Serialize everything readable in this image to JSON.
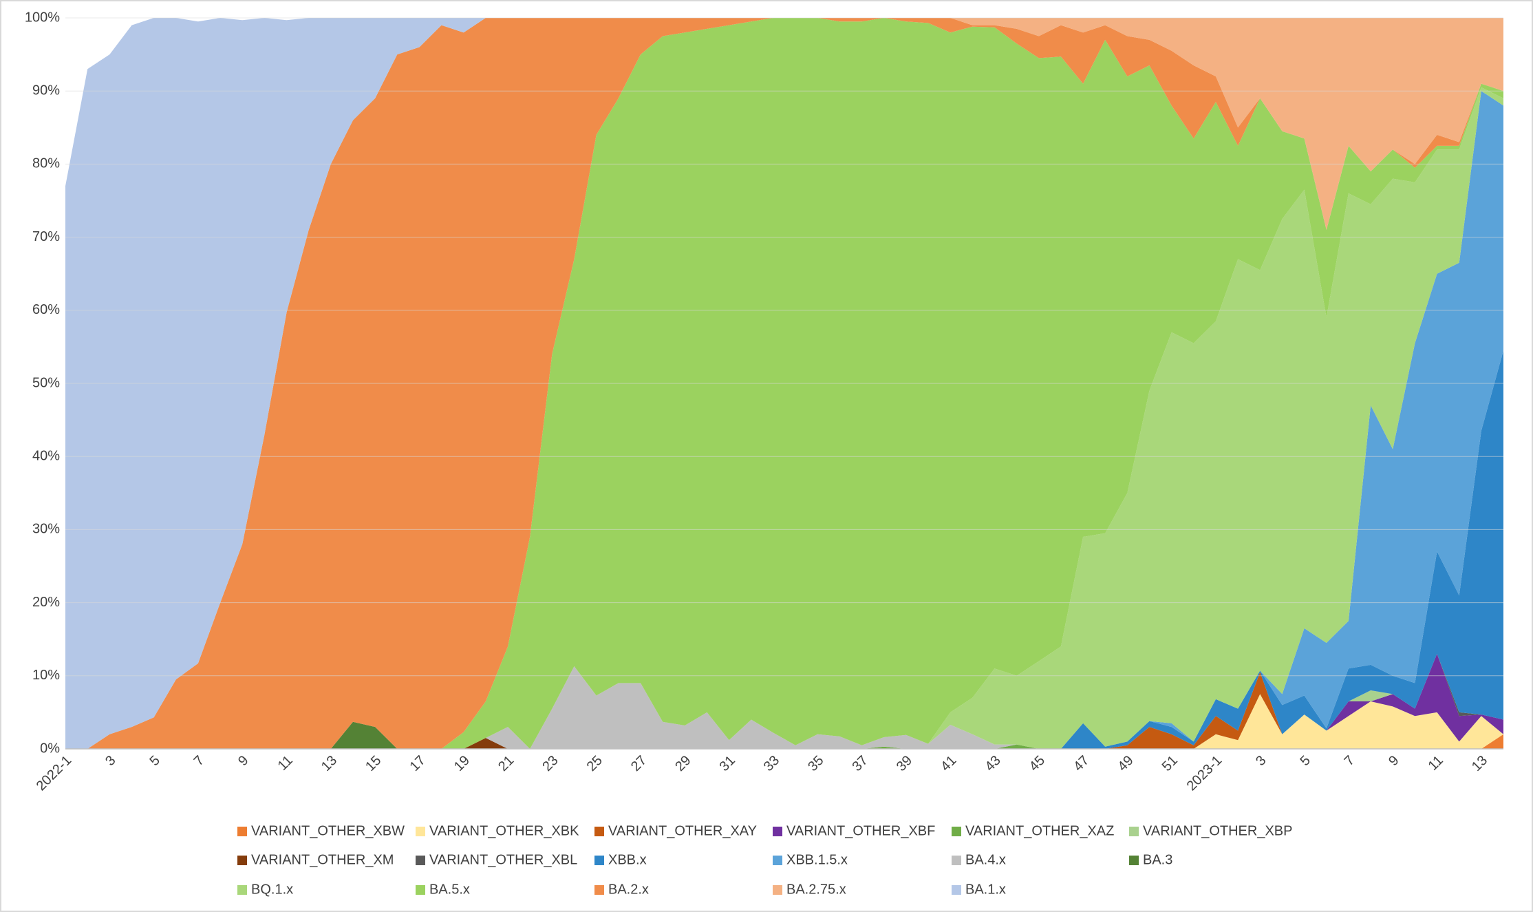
{
  "chart_data": {
    "type": "stacked-area",
    "categories": [
      "2022-1",
      null,
      "3",
      null,
      "5",
      null,
      "7",
      null,
      "9",
      null,
      "11",
      null,
      "13",
      null,
      "15",
      null,
      "17",
      null,
      "19",
      null,
      "21",
      null,
      "23",
      null,
      "25",
      null,
      "27",
      null,
      "29",
      null,
      "31",
      null,
      "33",
      null,
      "35",
      null,
      "37",
      null,
      "39",
      null,
      "41",
      null,
      "43",
      null,
      "45",
      null,
      "47",
      null,
      "49",
      null,
      "51",
      null,
      "2023-1",
      null,
      "3",
      null,
      "5",
      null,
      "7",
      null,
      "9",
      null,
      "11",
      null,
      "13",
      null
    ],
    "ylim": [
      0,
      100
    ],
    "yticks": [
      {
        "value": 0,
        "label": "0%"
      },
      {
        "value": 10,
        "label": "10%"
      },
      {
        "value": 20,
        "label": "20%"
      },
      {
        "value": 30,
        "label": "30%"
      },
      {
        "value": 40,
        "label": "40%"
      },
      {
        "value": 50,
        "label": "50%"
      },
      {
        "value": 60,
        "label": "60%"
      },
      {
        "value": 70,
        "label": "70%"
      },
      {
        "value": 80,
        "label": "80%"
      },
      {
        "value": 90,
        "label": "90%"
      },
      {
        "value": 100,
        "label": "100%"
      }
    ],
    "grid": true,
    "legend": "bottom",
    "series": [
      {
        "name": "VARIANT_OTHER_XBW",
        "color": "#ed7d31",
        "values": [
          0,
          0,
          0,
          0,
          0,
          0,
          0,
          0,
          0,
          0,
          0,
          0,
          0,
          0,
          0,
          0,
          0,
          0,
          0,
          0,
          0,
          0,
          0,
          0,
          0,
          0,
          0,
          0,
          0,
          0,
          0,
          0,
          0,
          0,
          0,
          0,
          0,
          0,
          0,
          0,
          0,
          0,
          0,
          0,
          0,
          0,
          0,
          0,
          0,
          0,
          0,
          0,
          0,
          0,
          0,
          0,
          0,
          0,
          0,
          0,
          0,
          0,
          0,
          0,
          0,
          2
        ]
      },
      {
        "name": "VARIANT_OTHER_XBK",
        "color": "#ffe699",
        "values": [
          0,
          0,
          0,
          0,
          0,
          0,
          0,
          0,
          0,
          0,
          0,
          0,
          0,
          0,
          0,
          0,
          0,
          0,
          0,
          0,
          0,
          0,
          0,
          0,
          0,
          0,
          0,
          0,
          0,
          0,
          0,
          0,
          0,
          0,
          0,
          0,
          0,
          0,
          0,
          0,
          0,
          0,
          0,
          0,
          0,
          0,
          0,
          0,
          0,
          0,
          0,
          0,
          2,
          1.2,
          7.5,
          2,
          4.7,
          2.5,
          4.5,
          6.5,
          5.8,
          4.5,
          5,
          1,
          4.5,
          0
        ]
      },
      {
        "name": "VARIANT_OTHER_XAY",
        "color": "#c55a11",
        "values": [
          0,
          0,
          0,
          0,
          0,
          0,
          0,
          0,
          0,
          0,
          0,
          0,
          0,
          0,
          0,
          0,
          0,
          0,
          0,
          0,
          0,
          0,
          0,
          0,
          0,
          0,
          0,
          0,
          0,
          0,
          0,
          0,
          0,
          0,
          0,
          0,
          0,
          0,
          0,
          0,
          0,
          0,
          0,
          0,
          0,
          0,
          0,
          0,
          0.5,
          3,
          2,
          0.5,
          2.5,
          1.3,
          3,
          0,
          0,
          0,
          0,
          0,
          0,
          0,
          0,
          0,
          0,
          0
        ]
      },
      {
        "name": "VARIANT_OTHER_XBF",
        "color": "#7030a0",
        "values": [
          0,
          0,
          0,
          0,
          0,
          0,
          0,
          0,
          0,
          0,
          0,
          0,
          0,
          0,
          0,
          0,
          0,
          0,
          0,
          0,
          0,
          0,
          0,
          0,
          0,
          0,
          0,
          0,
          0,
          0,
          0,
          0,
          0,
          0,
          0,
          0,
          0,
          0,
          0,
          0,
          0,
          0,
          0,
          0,
          0,
          0,
          0,
          0,
          0,
          0,
          0,
          0,
          0,
          0,
          0,
          0,
          0,
          0,
          2,
          0,
          1.7,
          1,
          8,
          3.5,
          0.2,
          2
        ]
      },
      {
        "name": "VARIANT_OTHER_XAZ",
        "color": "#70ad47",
        "values": [
          0,
          0,
          0,
          0,
          0,
          0,
          0,
          0,
          0,
          0,
          0,
          0,
          0,
          0,
          0,
          0,
          0,
          0,
          0,
          0,
          0,
          0,
          0,
          0,
          0,
          0,
          0,
          0,
          0,
          0,
          0,
          0,
          0,
          0,
          0,
          0,
          0,
          0.3,
          0,
          0,
          0,
          0,
          0,
          0.6,
          0,
          0,
          0,
          0,
          0,
          0,
          0,
          0,
          0,
          0,
          0,
          0,
          0,
          0,
          0,
          0,
          0,
          0,
          0,
          0,
          0,
          0
        ]
      },
      {
        "name": "VARIANT_OTHER_XBP",
        "color": "#a9d18e",
        "values": [
          0,
          0,
          0,
          0,
          0,
          0,
          0,
          0,
          0,
          0,
          0,
          0,
          0,
          0,
          0,
          0,
          0,
          0,
          0,
          0,
          0,
          0,
          0,
          0,
          0,
          0,
          0,
          0,
          0,
          0,
          0,
          0,
          0,
          0,
          0,
          0,
          0,
          0,
          0,
          0,
          0,
          0,
          0,
          0,
          0,
          0,
          0,
          0,
          0,
          0,
          0,
          0,
          0,
          0,
          0,
          0,
          0,
          0,
          0,
          1.5,
          0,
          0,
          0,
          0,
          0,
          0
        ]
      },
      {
        "name": "VARIANT_OTHER_XM",
        "color": "#843c0c",
        "values": [
          0,
          0,
          0,
          0,
          0,
          0,
          0,
          0,
          0,
          0,
          0,
          0,
          0,
          0,
          0,
          0,
          0,
          0,
          0,
          1.5,
          0,
          0,
          0,
          0,
          0,
          0,
          0,
          0,
          0,
          0,
          0,
          0,
          0,
          0,
          0,
          0,
          0,
          0,
          0,
          0,
          0,
          0,
          0,
          0,
          0,
          0,
          0,
          0,
          0,
          0,
          0,
          0,
          0,
          0,
          0,
          0,
          0,
          0,
          0,
          0,
          0,
          0,
          0,
          0,
          0,
          0
        ]
      },
      {
        "name": "VARIANT_OTHER_XBL",
        "color": "#595959",
        "values": [
          0,
          0,
          0,
          0,
          0,
          0,
          0,
          0,
          0,
          0,
          0,
          0,
          0,
          0,
          0,
          0,
          0,
          0,
          0,
          0,
          0,
          0,
          0,
          0,
          0,
          0,
          0,
          0,
          0,
          0,
          0,
          0,
          0,
          0,
          0,
          0,
          0,
          0,
          0,
          0,
          0,
          0,
          0,
          0,
          0,
          0,
          0,
          0,
          0,
          0,
          0,
          0,
          0,
          0,
          0,
          0,
          0,
          0,
          0,
          0,
          0,
          0,
          0,
          0.5,
          0,
          0
        ]
      },
      {
        "name": "XBB.x",
        "color": "#2e86c8",
        "values": [
          0,
          0,
          0,
          0,
          0,
          0,
          0,
          0,
          0,
          0,
          0,
          0,
          0,
          0,
          0,
          0,
          0,
          0,
          0,
          0,
          0,
          0,
          0,
          0,
          0,
          0,
          0,
          0,
          0,
          0,
          0,
          0,
          0,
          0,
          0,
          0,
          0,
          0,
          0,
          0,
          0,
          0,
          0,
          0,
          0,
          0,
          3.5,
          0.3,
          0.5,
          0.8,
          1,
          0.5,
          2.3,
          3,
          0.2,
          4,
          2.6,
          0.3,
          4.5,
          3.5,
          2.5,
          3.5,
          14,
          16,
          38.8,
          50.5
        ]
      },
      {
        "name": "XBB.1.5.x",
        "color": "#5ba3d9",
        "values": [
          0,
          0,
          0,
          0,
          0,
          0,
          0,
          0,
          0,
          0,
          0,
          0,
          0,
          0,
          0,
          0,
          0,
          0,
          0,
          0,
          0,
          0,
          0,
          0,
          0,
          0,
          0,
          0,
          0,
          0,
          0,
          0,
          0,
          0,
          0,
          0,
          0,
          0,
          0,
          0,
          0,
          0,
          0,
          0,
          0,
          0,
          0,
          0,
          0,
          0,
          0.5,
          0,
          0,
          0,
          0,
          1.5,
          9.2,
          11.7,
          6.5,
          35.5,
          31,
          46.5,
          38,
          45.5,
          46.5,
          33.5
        ]
      },
      {
        "name": "BA.4.x",
        "color": "#bfbfbf",
        "values": [
          0,
          0,
          0,
          0,
          0,
          0,
          0,
          0,
          0,
          0,
          0,
          0,
          0,
          0,
          0,
          0,
          0,
          0,
          0,
          0,
          3,
          0,
          5.5,
          11.3,
          7.3,
          9,
          9,
          3.7,
          3.2,
          5,
          1.2,
          4,
          2.2,
          0.5,
          2,
          1.7,
          0.5,
          1.3,
          1.9,
          0.7,
          3.3,
          2,
          0.6,
          0,
          0,
          0,
          0,
          0,
          0,
          0,
          0,
          0,
          0,
          0,
          0,
          0,
          0,
          0,
          0,
          0,
          0,
          0,
          0,
          0,
          0,
          0
        ]
      },
      {
        "name": "BA.3",
        "color": "#548235",
        "values": [
          0,
          0,
          0,
          0,
          0,
          0,
          0,
          0,
          0,
          0,
          0,
          0,
          0,
          3.7,
          3,
          0,
          0,
          0,
          0,
          0,
          0,
          0,
          0,
          0,
          0,
          0,
          0,
          0,
          0,
          0,
          0,
          0,
          0,
          0,
          0,
          0,
          0,
          0,
          0,
          0,
          0,
          0,
          0,
          0,
          0,
          0,
          0,
          0,
          0,
          0,
          0,
          0,
          0,
          0,
          0,
          0,
          0,
          0,
          0,
          0,
          0,
          0,
          0,
          0,
          0,
          0
        ]
      },
      {
        "name": "BQ.1.x",
        "color": "#a9d77a",
        "values": [
          0,
          0,
          0,
          0,
          0,
          0,
          0,
          0,
          0,
          0,
          0,
          0,
          0,
          0,
          0,
          0,
          0,
          0,
          0,
          0,
          0,
          0,
          0,
          0,
          0,
          0,
          0,
          0,
          0,
          0,
          0,
          0,
          0,
          0,
          0,
          0,
          0,
          0,
          0,
          0,
          1.7,
          5,
          10.4,
          9.4,
          12,
          14,
          25.5,
          29.2,
          34,
          45.2,
          53.5,
          54.5,
          51.7,
          61.5,
          54.8,
          65,
          60,
          44.5,
          58.5,
          27.5,
          37,
          22,
          17,
          15.5,
          0.5,
          1
        ]
      },
      {
        "name": "BA.5.x",
        "color": "#9bd25f",
        "values": [
          0,
          0,
          0,
          0,
          0,
          0,
          0,
          0,
          0,
          0,
          0,
          0,
          0,
          0,
          0,
          0,
          0,
          0,
          2.3,
          5,
          11,
          29,
          48.5,
          55.7,
          76.7,
          80,
          86,
          93.8,
          94.8,
          93.5,
          97.8,
          95.5,
          97.8,
          99.5,
          98,
          97.8,
          99,
          98.4,
          97.6,
          98.6,
          93,
          91.8,
          87.7,
          86.5,
          82.5,
          80.7,
          62,
          67.5,
          57,
          44.5,
          31,
          28,
          30,
          15.5,
          23.5,
          12,
          7,
          12,
          6.5,
          4.5,
          4,
          2,
          0.5,
          0.5,
          0.5,
          1
        ]
      },
      {
        "name": "BA.2.x",
        "color": "#f08c4a",
        "values": [
          0,
          0,
          2,
          3,
          4.3,
          9.5,
          11.7,
          20,
          28,
          43,
          59.7,
          71,
          80,
          82.3,
          86,
          95,
          96,
          99,
          95.7,
          93.5,
          86,
          71,
          46,
          33,
          16,
          11,
          5,
          2.5,
          2,
          1.5,
          1,
          0.5,
          0,
          0,
          0,
          0.5,
          0.5,
          0,
          0.5,
          0.7,
          2,
          0.2,
          0.3,
          2,
          3,
          4.3,
          7,
          2,
          5.5,
          3.5,
          7.5,
          10,
          3.5,
          2.5,
          0,
          0,
          0,
          0,
          0,
          0,
          0,
          0.5,
          1.5,
          0.5,
          0,
          0
        ]
      },
      {
        "name": "BA.2.75.x",
        "color": "#f4b183",
        "values": [
          0,
          0,
          0,
          0,
          0,
          0,
          0,
          0,
          0,
          0,
          0,
          0,
          0,
          0,
          0,
          0,
          0,
          0,
          0,
          0,
          0,
          0,
          0,
          0,
          0,
          0,
          0,
          0,
          0,
          0,
          0,
          0,
          0,
          0,
          0,
          0,
          0,
          0,
          0,
          0,
          0,
          1,
          1,
          1.5,
          2.5,
          1,
          2,
          1,
          2.5,
          3,
          4.5,
          6.5,
          8,
          15,
          11,
          15.5,
          16.5,
          29,
          17.5,
          21,
          18,
          20,
          16,
          17,
          9,
          10
        ]
      },
      {
        "name": "BA.1.x",
        "color": "#b4c7e7",
        "values": [
          77,
          93,
          93,
          96,
          95.7,
          90.5,
          87.8,
          80,
          71.7,
          57,
          40,
          29,
          20,
          14,
          11,
          5,
          4,
          1,
          2,
          0,
          0,
          0,
          0,
          0,
          0,
          0,
          0,
          0,
          0,
          0,
          0,
          0,
          0,
          0,
          0,
          0,
          0,
          0,
          0,
          0,
          0,
          0,
          0,
          0,
          0,
          0,
          0,
          0,
          0,
          0,
          0,
          0,
          0,
          0,
          0,
          0,
          0,
          0,
          0,
          0,
          0,
          0,
          0,
          0,
          0,
          0
        ]
      }
    ]
  }
}
